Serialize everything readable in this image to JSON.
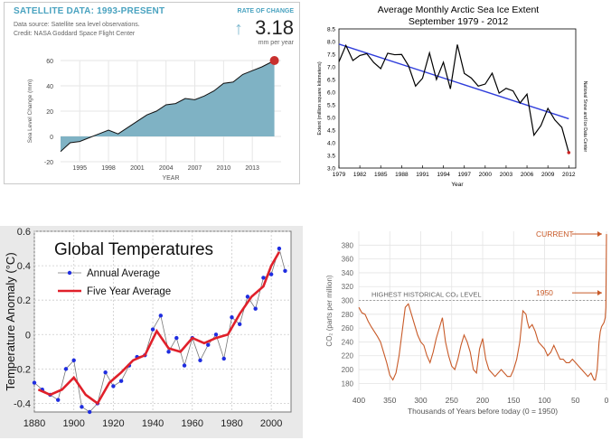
{
  "satellite": {
    "title": "SATELLITE DATA: 1993-PRESENT",
    "source_line1": "Data source: Satellite sea level observations.",
    "source_line2": "Credit: NASA Goddard Space Flight Center",
    "rate_label": "RATE OF CHANGE",
    "rate_value": "3.18",
    "rate_unit": "mm per year",
    "arrow_icon": "up-arrow-icon",
    "fill_color": "#7fb2c4",
    "marker_color": "#c8302e"
  },
  "chart_data": [
    {
      "type": "area",
      "title": "",
      "xlabel": "YEAR",
      "ylabel": "Sea Level Change (mm)",
      "xlim": [
        1993,
        2016
      ],
      "ylim": [
        -20,
        60
      ],
      "xticks": [
        "1995",
        "1998",
        "2001",
        "2004",
        "2007",
        "2010",
        "2013"
      ],
      "yticks": [
        "-20",
        "0",
        "20",
        "40",
        "60"
      ],
      "x": [
        1993,
        1994,
        1995,
        1996,
        1997,
        1998,
        1999,
        2000,
        2001,
        2002,
        2003,
        2004,
        2005,
        2006,
        2007,
        2008,
        2009,
        2010,
        2011,
        2012,
        2013,
        2014,
        2015.3
      ],
      "values": [
        -12,
        -5,
        -4,
        -1,
        2,
        5,
        2,
        7,
        12,
        17,
        20,
        25,
        26,
        30,
        29,
        32,
        36,
        42,
        43,
        49,
        52,
        55,
        60
      ]
    },
    {
      "type": "line",
      "title": "Average Monthly Arctic Sea Ice Extent",
      "subtitle": "September 1979 - 2012",
      "xlabel": "Year",
      "ylabel": "Extent (million square kilometers)",
      "side_note": "National Snow and Ice Data Center",
      "xlim": [
        1979,
        2013
      ],
      "ylim": [
        3.0,
        8.5
      ],
      "xticks": [
        "1979",
        "1982",
        "1985",
        "1988",
        "1991",
        "1994",
        "1997",
        "2000",
        "2003",
        "2006",
        "2009",
        "2012"
      ],
      "yticks": [
        "3.0",
        "3.5",
        "4.0",
        "4.5",
        "5.0",
        "5.5",
        "6.0",
        "6.5",
        "7.0",
        "7.5",
        "8.0",
        "8.5"
      ],
      "x": [
        1979,
        1980,
        1981,
        1982,
        1983,
        1984,
        1985,
        1986,
        1987,
        1988,
        1989,
        1990,
        1991,
        1992,
        1993,
        1994,
        1995,
        1996,
        1997,
        1998,
        1999,
        2000,
        2001,
        2002,
        2003,
        2004,
        2005,
        2006,
        2007,
        2008,
        2009,
        2010,
        2011,
        2012
      ],
      "values": [
        7.2,
        7.85,
        7.25,
        7.45,
        7.52,
        7.17,
        6.93,
        7.54,
        7.48,
        7.49,
        7.04,
        6.24,
        6.55,
        7.55,
        6.5,
        7.18,
        6.13,
        7.88,
        6.74,
        6.56,
        6.24,
        6.32,
        6.75,
        5.96,
        6.15,
        6.05,
        5.57,
        5.92,
        4.3,
        4.68,
        5.36,
        4.9,
        4.61,
        3.61
      ],
      "trend": [
        7.9,
        4.95
      ],
      "line_color": "#000000",
      "trend_color": "#2e3cdb",
      "last_point_color": "#cc2222"
    },
    {
      "type": "line",
      "title": "Global Temperatures",
      "xlabel": "",
      "ylabel": "Temperature Anomaly (°C)",
      "xlim": [
        1880,
        2010
      ],
      "ylim": [
        -0.45,
        0.6
      ],
      "xticks": [
        "1880",
        "1900",
        "1920",
        "1940",
        "1960",
        "1980",
        "2000"
      ],
      "yticks": [
        "-0.4",
        "-0.2",
        "0",
        "0.2",
        "0.4",
        "0.6"
      ],
      "series": [
        {
          "name": "Annual Average",
          "color": "#1f2de0",
          "x": [
            1880,
            1884,
            1888,
            1892,
            1896,
            1900,
            1904,
            1908,
            1912,
            1916,
            1920,
            1924,
            1928,
            1932,
            1936,
            1940,
            1944,
            1948,
            1952,
            1956,
            1960,
            1964,
            1968,
            1972,
            1976,
            1980,
            1984,
            1988,
            1992,
            1996,
            2000,
            2004,
            2007
          ],
          "values": [
            -0.28,
            -0.32,
            -0.35,
            -0.38,
            -0.2,
            -0.15,
            -0.42,
            -0.45,
            -0.4,
            -0.22,
            -0.3,
            -0.27,
            -0.18,
            -0.13,
            -0.12,
            0.03,
            0.11,
            -0.1,
            -0.02,
            -0.18,
            -0.02,
            -0.15,
            -0.06,
            0.0,
            -0.14,
            0.1,
            0.06,
            0.22,
            0.15,
            0.33,
            0.35,
            0.5,
            0.37
          ]
        },
        {
          "name": "Five Year Average",
          "color": "#e0202a",
          "x": [
            1882,
            1888,
            1894,
            1900,
            1906,
            1912,
            1918,
            1924,
            1930,
            1936,
            1942,
            1948,
            1954,
            1960,
            1966,
            1972,
            1978,
            1984,
            1990,
            1996,
            2000,
            2004
          ],
          "values": [
            -0.32,
            -0.35,
            -0.32,
            -0.25,
            -0.35,
            -0.4,
            -0.28,
            -0.22,
            -0.15,
            -0.12,
            0.02,
            -0.08,
            -0.1,
            -0.02,
            -0.05,
            -0.02,
            0.0,
            0.12,
            0.22,
            0.28,
            0.4,
            0.48
          ]
        }
      ]
    },
    {
      "type": "line",
      "title": "",
      "xlabel": "Thousands of Years before today (0 = 1950)",
      "ylabel": "CO₂ (parts per million)",
      "xlim": [
        400,
        0
      ],
      "ylim": [
        170,
        400
      ],
      "xticks": [
        "400",
        "350",
        "300",
        "250",
        "200",
        "150",
        "100",
        "50",
        "0"
      ],
      "yticks": [
        "180",
        "200",
        "220",
        "240",
        "260",
        "280",
        "300",
        "320",
        "340",
        "360",
        "380"
      ],
      "reference_line": {
        "label": "HIGHEST HISTORICAL CO₂ LEVEL",
        "value": 300
      },
      "annotations": [
        {
          "label": "CURRENT",
          "value": 396
        },
        {
          "label": "1950",
          "value": 311
        }
      ],
      "color": "#c85a28",
      "x": [
        400,
        395,
        390,
        385,
        380,
        375,
        370,
        365,
        360,
        355,
        350,
        345,
        340,
        335,
        330,
        325,
        320,
        315,
        310,
        305,
        300,
        295,
        290,
        285,
        280,
        275,
        270,
        265,
        260,
        255,
        250,
        245,
        240,
        235,
        230,
        225,
        220,
        215,
        210,
        205,
        200,
        195,
        190,
        185,
        180,
        175,
        170,
        165,
        160,
        155,
        150,
        145,
        140,
        135,
        130,
        128,
        125,
        120,
        115,
        110,
        105,
        100,
        95,
        90,
        85,
        80,
        75,
        70,
        65,
        60,
        55,
        50,
        45,
        40,
        35,
        30,
        25,
        20,
        18,
        15,
        12,
        10,
        8,
        6,
        4,
        2,
        1,
        0
      ],
      "values": [
        290,
        282,
        280,
        270,
        262,
        255,
        248,
        240,
        225,
        210,
        192,
        185,
        195,
        220,
        255,
        290,
        295,
        280,
        265,
        250,
        240,
        235,
        220,
        210,
        225,
        245,
        260,
        275,
        240,
        220,
        205,
        200,
        215,
        235,
        250,
        240,
        225,
        200,
        195,
        230,
        245,
        215,
        200,
        195,
        190,
        195,
        200,
        195,
        190,
        190,
        200,
        215,
        240,
        285,
        280,
        270,
        260,
        265,
        255,
        240,
        235,
        230,
        220,
        225,
        235,
        225,
        215,
        215,
        210,
        210,
        215,
        210,
        205,
        200,
        195,
        190,
        195,
        185,
        185,
        200,
        240,
        255,
        262,
        265,
        268,
        275,
        290,
        396
      ]
    }
  ]
}
